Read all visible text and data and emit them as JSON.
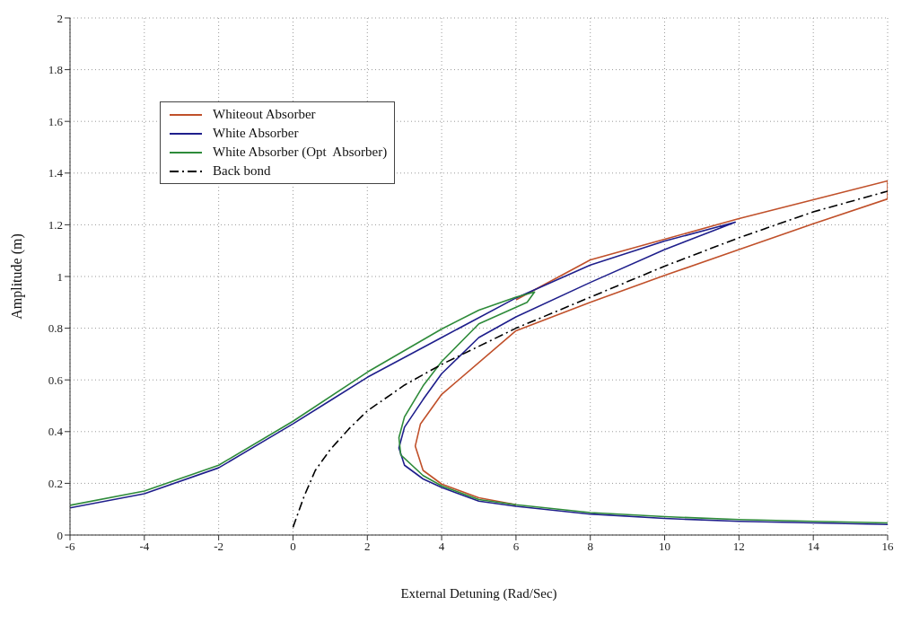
{
  "chart_data": {
    "type": "line",
    "xlabel": "External Detuning (Rad/Sec)",
    "ylabel": "Amplitude (m)",
    "xlim": [
      -6,
      16
    ],
    "xticks": [
      -6,
      -4,
      -2,
      0,
      2,
      4,
      6,
      8,
      10,
      12,
      14,
      16
    ],
    "ylim": [
      0,
      2
    ],
    "yticks": [
      0,
      0.2,
      0.4,
      0.6,
      0.8,
      1,
      1.2,
      1.4,
      1.6,
      1.8,
      2
    ],
    "grid": true,
    "legend": "top left",
    "marker": "none",
    "series": [
      {
        "name": "Whiteout Absorber",
        "color": "#c0502a",
        "line_style": "solid",
        "x": [
          6,
          8,
          10,
          12,
          14,
          16,
          16,
          14,
          12,
          10,
          8,
          6,
          4,
          3.43,
          3.29,
          3.5,
          4,
          5,
          6
        ],
        "values": [
          0.91,
          1.064,
          1.144,
          1.224,
          1.297,
          1.37,
          1.3,
          1.204,
          1.104,
          1.004,
          0.9,
          0.79,
          0.544,
          0.43,
          0.344,
          0.25,
          0.197,
          0.144,
          0.117
        ]
      },
      {
        "name": "White Absorber",
        "color": "#1f1f8c",
        "line_style": "solid",
        "x": [
          -6,
          -4,
          -2,
          0,
          1,
          2,
          4,
          6,
          8,
          10,
          11.9,
          10,
          8,
          6,
          5,
          4,
          3.5,
          3,
          2.85,
          3,
          3.5,
          4,
          5,
          6,
          8,
          10,
          12,
          14,
          16
        ],
        "values": [
          0.105,
          0.16,
          0.26,
          0.43,
          0.52,
          0.61,
          0.764,
          0.917,
          1.044,
          1.137,
          1.21,
          1.104,
          0.977,
          0.844,
          0.764,
          0.624,
          0.524,
          0.417,
          0.337,
          0.27,
          0.217,
          0.184,
          0.131,
          0.111,
          0.081,
          0.064,
          0.053,
          0.047,
          0.041
        ]
      },
      {
        "name": "White Absorber (Opt  Absorber)",
        "color": "#2e8b3a",
        "line_style": "solid",
        "x": [
          -6,
          -4,
          -2,
          0,
          2,
          4,
          5,
          6,
          6.5,
          6.3,
          5,
          4,
          3.5,
          3,
          2.85,
          2.9,
          3.5,
          4,
          5,
          6,
          8,
          10,
          12,
          14,
          16
        ],
        "values": [
          0.115,
          0.17,
          0.27,
          0.44,
          0.63,
          0.797,
          0.87,
          0.92,
          0.94,
          0.9,
          0.817,
          0.671,
          0.577,
          0.457,
          0.377,
          0.31,
          0.23,
          0.19,
          0.137,
          0.117,
          0.087,
          0.071,
          0.06,
          0.053,
          0.047
        ]
      },
      {
        "name": "Back bond",
        "color": "#000000",
        "line_style": "dashdot",
        "x": [
          0,
          0.3,
          0.6,
          1,
          1.5,
          2,
          3,
          4,
          6,
          8,
          10,
          12,
          14,
          16
        ],
        "values": [
          0.03,
          0.15,
          0.25,
          0.33,
          0.41,
          0.48,
          0.58,
          0.66,
          0.8,
          0.92,
          1.04,
          1.15,
          1.25,
          1.33
        ]
      }
    ]
  }
}
